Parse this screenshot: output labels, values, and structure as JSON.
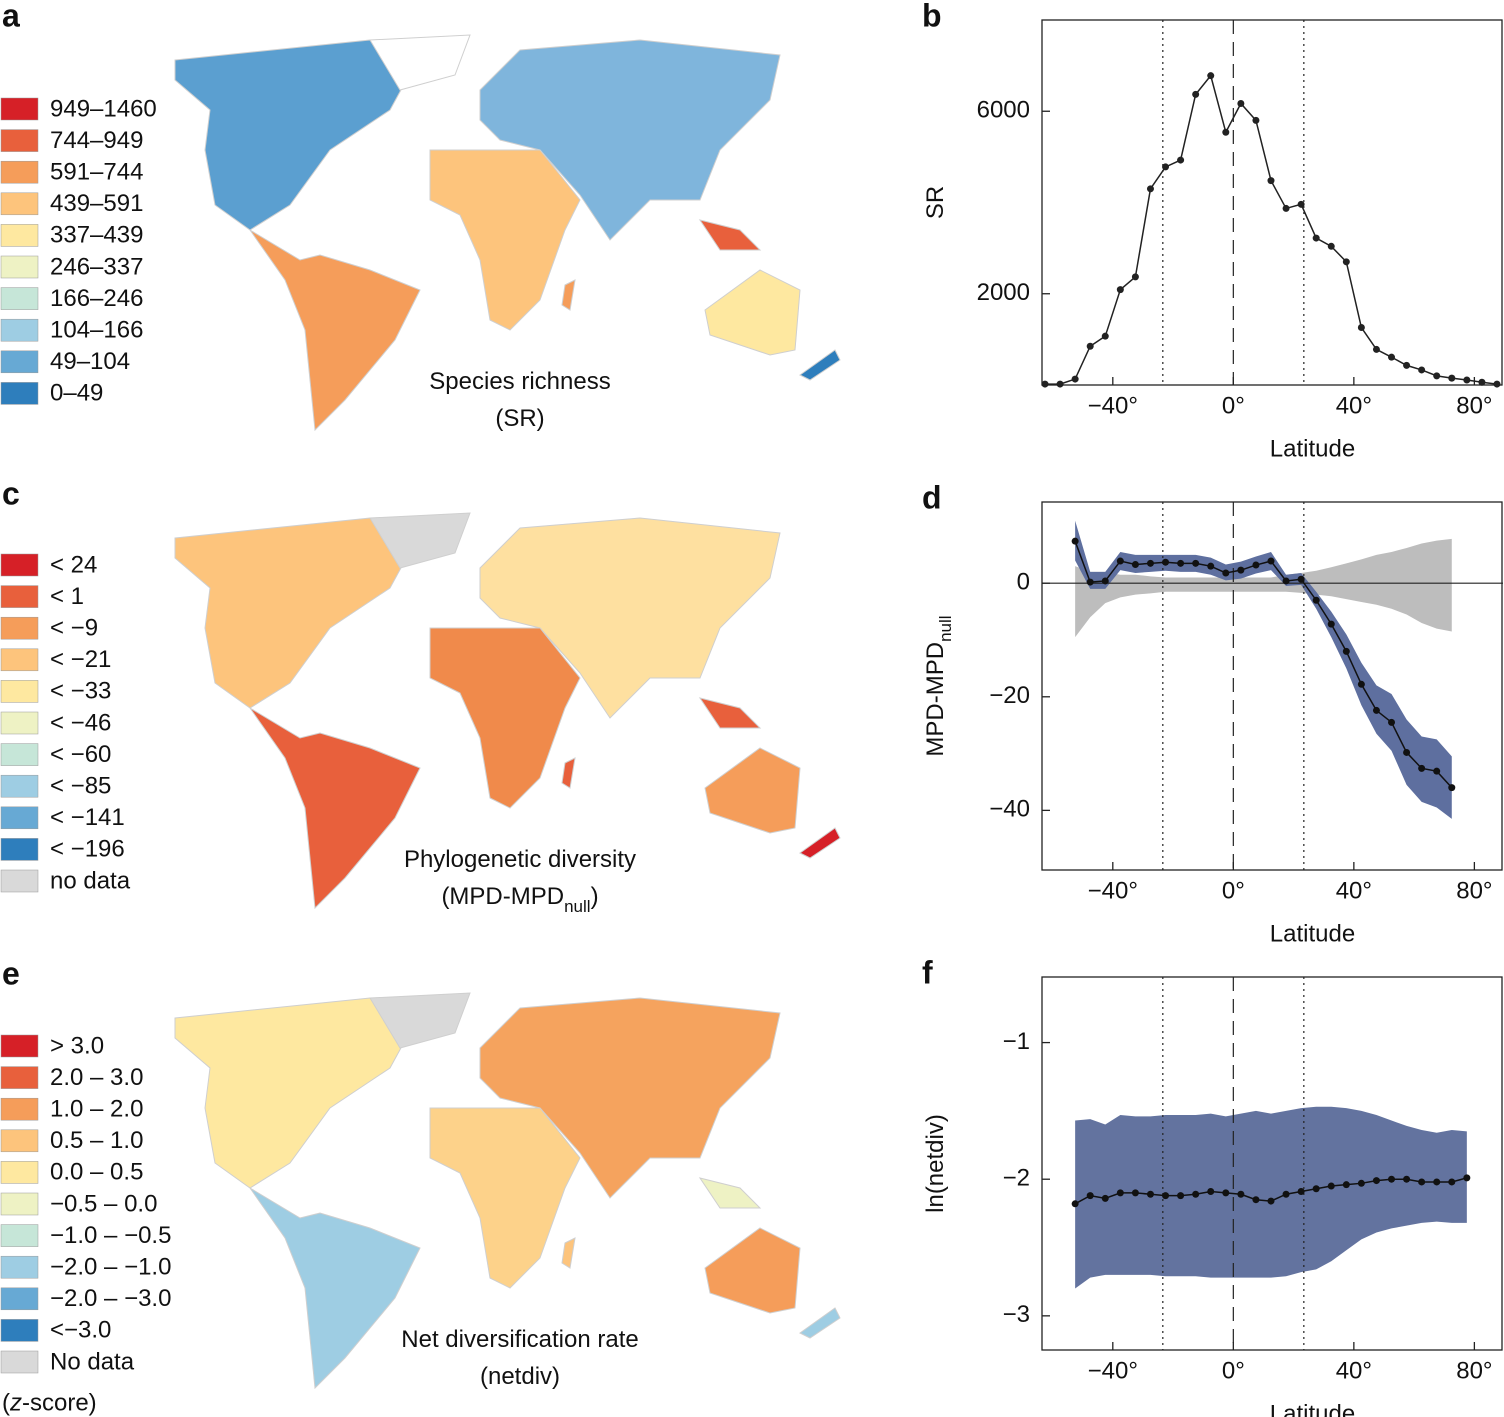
{
  "maps": [
    {
      "panel_label": "a",
      "legend": [
        {
          "label": "949–1460",
          "color": "#d62027"
        },
        {
          "label": "744–949",
          "color": "#e8603c"
        },
        {
          "label": "591–744",
          "color": "#f59d5a"
        },
        {
          "label": "439–591",
          "color": "#fdc47c"
        },
        {
          "label": "337–439",
          "color": "#fee8a0"
        },
        {
          "label": "246–337",
          "color": "#eef2c4"
        },
        {
          "label": "166–246",
          "color": "#c6e6d8"
        },
        {
          "label": "104–166",
          "color": "#9ecde3"
        },
        {
          "label": "49–104",
          "color": "#67a9d4"
        },
        {
          "label": "0–49",
          "color": "#2e7ebc"
        }
      ],
      "caption": [
        [
          {
            "text": "Species richness"
          }
        ],
        [
          {
            "text": "(SR)"
          }
        ]
      ]
    },
    {
      "panel_label": "c",
      "legend": [
        {
          "label": "< 24",
          "color": "#d62027"
        },
        {
          "label": "< 1",
          "color": "#e8603c"
        },
        {
          "label": "< −9",
          "color": "#f59d5a"
        },
        {
          "label": "< −21",
          "color": "#fdc47c"
        },
        {
          "label": "< −33",
          "color": "#fee8a0"
        },
        {
          "label": "< −46",
          "color": "#eef2c4"
        },
        {
          "label": "< −60",
          "color": "#c6e6d8"
        },
        {
          "label": "< −85",
          "color": "#9ecde3"
        },
        {
          "label": "< −141",
          "color": "#67a9d4"
        },
        {
          "label": "< −196",
          "color": "#2e7ebc"
        },
        {
          "label": "no data",
          "color": "#d9d9d9"
        }
      ],
      "caption": [
        [
          {
            "text": "Phylogenetic diversity"
          }
        ],
        [
          {
            "text": "(MPD-MPD"
          },
          {
            "text": "null",
            "sub": true
          },
          {
            "text": ")"
          }
        ]
      ]
    },
    {
      "panel_label": "e",
      "legend": [
        {
          "label": "> 3.0",
          "color": "#d62027"
        },
        {
          "label": "2.0 – 3.0",
          "color": "#e8603c"
        },
        {
          "label": "1.0 – 2.0",
          "color": "#f59d5a"
        },
        {
          "label": "0.5 – 1.0",
          "color": "#fdc47c"
        },
        {
          "label": "0.0 – 0.5",
          "color": "#fee8a0"
        },
        {
          "label": "−0.5 – 0.0",
          "color": "#eef2c4"
        },
        {
          "label": "−1.0 – −0.5",
          "color": "#c6e6d8"
        },
        {
          "label": "−2.0 – −1.0",
          "color": "#9ecde3"
        },
        {
          "label": "−2.0 – −3.0",
          "color": "#67a9d4"
        },
        {
          "label": "<−3.0",
          "color": "#2e7ebc"
        },
        {
          "label": "No data",
          "color": "#d9d9d9"
        }
      ],
      "legend_note": [
        {
          "text": "("
        },
        {
          "text": "z",
          "italic": true
        },
        {
          "text": "-score)"
        }
      ],
      "caption": [
        [
          {
            "text": "Net diversification rate"
          }
        ],
        [
          {
            "text": "(netdiv)"
          }
        ]
      ]
    }
  ],
  "chart_data": [
    {
      "type": "line",
      "panel_label": "b",
      "xlabel": "Latitude",
      "ylabel": [
        {
          "text": "SR"
        }
      ],
      "xlim": [
        -63.5,
        89.5
      ],
      "ylim": [
        0,
        8000
      ],
      "xticks": [
        {
          "value": -40,
          "label": "−40°"
        },
        {
          "value": 0,
          "label": "0°"
        },
        {
          "value": 40,
          "label": "40°"
        },
        {
          "value": 80,
          "label": "80°"
        }
      ],
      "yticks": [
        2000,
        6000
      ],
      "vlines": [
        {
          "value": -23.4,
          "style": "dotted"
        },
        {
          "value": 0,
          "style": "dashed"
        },
        {
          "value": 23.4,
          "style": "dotted"
        }
      ],
      "series": [
        {
          "color": "#222222",
          "x": [
            -62.5,
            -57.5,
            -52.5,
            -47.5,
            -42.5,
            -37.5,
            -32.5,
            -27.5,
            -22.5,
            -17.5,
            -12.5,
            -7.5,
            -2.5,
            2.5,
            7.5,
            12.5,
            17.5,
            22.5,
            27.5,
            32.5,
            37.5,
            42.5,
            47.5,
            52.5,
            57.5,
            62.5,
            67.5,
            72.5,
            77.5,
            82.5,
            87.5
          ],
          "values": [
            20,
            20,
            130,
            850,
            1070,
            2090,
            2370,
            4300,
            4780,
            4930,
            6370,
            6780,
            5540,
            6170,
            5800,
            4480,
            3870,
            3960,
            3220,
            3040,
            2700,
            1260,
            780,
            610,
            430,
            330,
            200,
            150,
            110,
            60,
            20
          ]
        }
      ]
    },
    {
      "type": "line",
      "panel_label": "d",
      "xlabel": "Latitude",
      "ylabel": [
        {
          "text": "MPD-MPD"
        },
        {
          "text": "null",
          "sub": true
        }
      ],
      "xlim": [
        -63.5,
        89.5
      ],
      "ylim": [
        -50.5,
        14.3
      ],
      "xticks": [
        {
          "value": -40,
          "label": "−40°"
        },
        {
          "value": 0,
          "label": "0°"
        },
        {
          "value": 40,
          "label": "40°"
        },
        {
          "value": 80,
          "label": "80°"
        }
      ],
      "yticks": [
        {
          "value": -40,
          "label": "−40"
        },
        {
          "value": -20,
          "label": "−20"
        },
        0
      ],
      "vlines": [
        {
          "value": -23.4,
          "style": "dotted"
        },
        {
          "value": 0,
          "style": "dashed"
        },
        {
          "value": 23.4,
          "style": "dotted"
        }
      ],
      "hlines": [
        {
          "value": 0,
          "style": "solid"
        }
      ],
      "bands": [
        {
          "color": "#bdbdbd",
          "x": [
            -52.5,
            -47.5,
            -42.5,
            -37.5,
            -32.5,
            -27.5,
            -22.5,
            -17.5,
            -12.5,
            -7.5,
            -2.5,
            2.5,
            7.5,
            12.5,
            17.5,
            22.5,
            27.5,
            32.5,
            37.5,
            42.5,
            47.5,
            52.5,
            57.5,
            62.5,
            67.5,
            72.5
          ],
          "upper": [
            3,
            2,
            2,
            1.5,
            1.5,
            1.2,
            1,
            1,
            1,
            1,
            1,
            1,
            1,
            1,
            1.5,
            1.8,
            2.2,
            2.8,
            3.5,
            4.2,
            5,
            5.5,
            6.2,
            7,
            7.5,
            7.8
          ],
          "lower": [
            -9.5,
            -6,
            -3.5,
            -2.5,
            -2,
            -1.8,
            -1.5,
            -1.5,
            -1.5,
            -1.5,
            -1.5,
            -1.5,
            -1.5,
            -1.5,
            -1.5,
            -1.7,
            -2,
            -2.3,
            -2.8,
            -3.3,
            -3.8,
            -4.5,
            -5.5,
            -7,
            -8,
            -8.5
          ]
        },
        {
          "color": "#5e6f9f",
          "x": [
            -52.5,
            -47.5,
            -42.5,
            -37.5,
            -32.5,
            -27.5,
            -22.5,
            -17.5,
            -12.5,
            -7.5,
            -2.5,
            2.5,
            7.5,
            12.5,
            17.5,
            22.5,
            27.5,
            32.5,
            37.5,
            42.5,
            47.5,
            52.5,
            57.5,
            62.5,
            67.5,
            72.5
          ],
          "upper": [
            11,
            2,
            2,
            5.5,
            5,
            5,
            5,
            5,
            5,
            4.5,
            3.3,
            3.8,
            4.7,
            5.5,
            1.5,
            1.8,
            -1.5,
            -5,
            -9,
            -14,
            -18,
            -19.5,
            -24,
            -27,
            -27.5,
            -30.5
          ],
          "lower": [
            4,
            -1,
            -1,
            2.3,
            1.8,
            2,
            2.2,
            2,
            2,
            1.5,
            0.5,
            0.8,
            1.7,
            2.3,
            -0.5,
            -0.3,
            -4.5,
            -9.5,
            -15,
            -21.5,
            -26.5,
            -29.5,
            -35.5,
            -38.5,
            -39.5,
            -41.5
          ]
        }
      ],
      "series": [
        {
          "color": "#111111",
          "x": [
            -52.5,
            -47.5,
            -42.5,
            -37.5,
            -32.5,
            -27.5,
            -22.5,
            -17.5,
            -12.5,
            -7.5,
            -2.5,
            2.5,
            7.5,
            12.5,
            17.5,
            22.5,
            27.5,
            32.5,
            37.5,
            42.5,
            47.5,
            52.5,
            57.5,
            62.5,
            67.5,
            72.5
          ],
          "values": [
            7.4,
            0.2,
            0.4,
            3.9,
            3.3,
            3.5,
            3.7,
            3.5,
            3.5,
            3.0,
            1.8,
            2.3,
            3.2,
            3.9,
            0.4,
            0.7,
            -3.0,
            -7.2,
            -12.0,
            -17.8,
            -22.4,
            -24.5,
            -29.8,
            -32.6,
            -33.1,
            -36.0
          ]
        }
      ]
    },
    {
      "type": "line",
      "panel_label": "f",
      "xlabel": "Latitude",
      "ylabel": [
        {
          "text": "ln(netdiv)"
        }
      ],
      "xlim": [
        -63.5,
        89.5
      ],
      "ylim": [
        -3.25,
        -0.52
      ],
      "xticks": [
        {
          "value": -40,
          "label": "−40°"
        },
        {
          "value": 0,
          "label": "0°"
        },
        {
          "value": 40,
          "label": "40°"
        },
        {
          "value": 80,
          "label": "80°"
        }
      ],
      "yticks": [
        {
          "value": -3,
          "label": "−3"
        },
        {
          "value": -2,
          "label": "−2"
        },
        {
          "value": -1,
          "label": "−1"
        }
      ],
      "vlines": [
        {
          "value": -23.4,
          "style": "dotted"
        },
        {
          "value": 0,
          "style": "dashed"
        },
        {
          "value": 23.4,
          "style": "dotted"
        }
      ],
      "bands": [
        {
          "color": "#63739f",
          "x": [
            -52.5,
            -47.5,
            -42.5,
            -37.5,
            -32.5,
            -27.5,
            -22.5,
            -17.5,
            -12.5,
            -7.5,
            -2.5,
            2.5,
            7.5,
            12.5,
            17.5,
            22.5,
            27.5,
            32.5,
            37.5,
            42.5,
            47.5,
            52.5,
            57.5,
            62.5,
            67.5,
            72.5,
            77.5
          ],
          "upper": [
            -1.57,
            -1.56,
            -1.6,
            -1.53,
            -1.54,
            -1.54,
            -1.53,
            -1.53,
            -1.53,
            -1.52,
            -1.54,
            -1.52,
            -1.5,
            -1.52,
            -1.5,
            -1.48,
            -1.47,
            -1.47,
            -1.48,
            -1.5,
            -1.53,
            -1.57,
            -1.61,
            -1.64,
            -1.66,
            -1.64,
            -1.65
          ],
          "lower": [
            -2.8,
            -2.72,
            -2.7,
            -2.7,
            -2.7,
            -2.7,
            -2.71,
            -2.71,
            -2.71,
            -2.72,
            -2.72,
            -2.72,
            -2.72,
            -2.72,
            -2.71,
            -2.68,
            -2.66,
            -2.6,
            -2.52,
            -2.44,
            -2.39,
            -2.36,
            -2.34,
            -2.32,
            -2.31,
            -2.32,
            -2.32
          ]
        }
      ],
      "series": [
        {
          "color": "#111111",
          "x": [
            -52.5,
            -47.5,
            -42.5,
            -37.5,
            -32.5,
            -27.5,
            -22.5,
            -17.5,
            -12.5,
            -7.5,
            -2.5,
            2.5,
            7.5,
            12.5,
            17.5,
            22.5,
            27.5,
            32.5,
            37.5,
            42.5,
            47.5,
            52.5,
            57.5,
            62.5,
            67.5,
            72.5,
            77.5
          ],
          "values": [
            -2.18,
            -2.12,
            -2.14,
            -2.1,
            -2.1,
            -2.11,
            -2.12,
            -2.12,
            -2.11,
            -2.09,
            -2.1,
            -2.11,
            -2.15,
            -2.16,
            -2.11,
            -2.09,
            -2.07,
            -2.05,
            -2.04,
            -2.03,
            -2.01,
            -2.0,
            -2.0,
            -2.02,
            -2.02,
            -2.02,
            -1.99
          ]
        }
      ]
    }
  ]
}
